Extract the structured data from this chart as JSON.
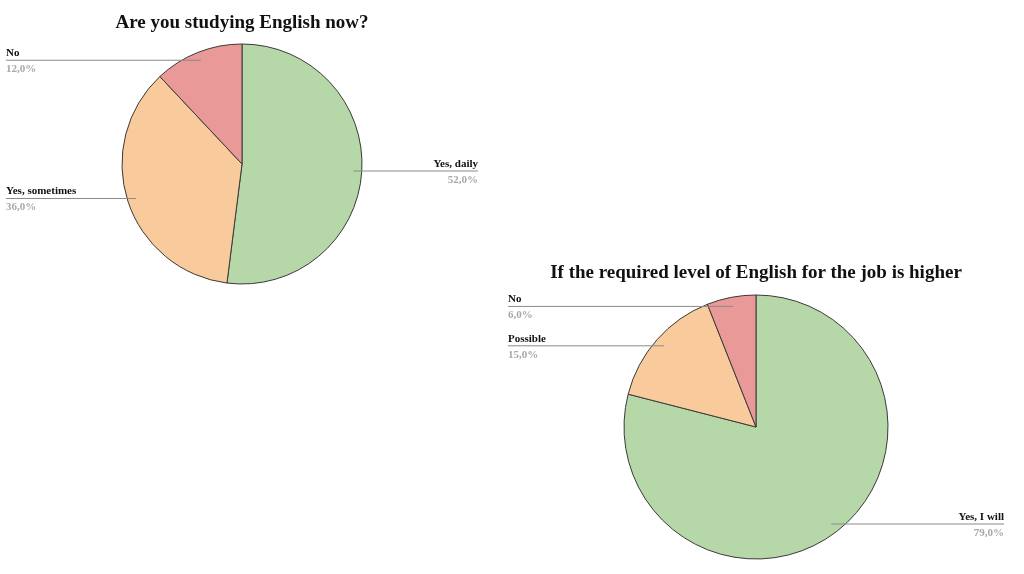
{
  "chart_data": [
    {
      "type": "pie",
      "title": "Are you studying English now?",
      "categories": [
        "Yes, daily",
        "Yes, sometimes",
        "No"
      ],
      "values": [
        52,
        36,
        12
      ],
      "colors": [
        "#b6d7a8",
        "#f9cb9c",
        "#ea9999"
      ],
      "value_labels": [
        "52,0%",
        "36,0%",
        "12,0%"
      ]
    },
    {
      "type": "pie",
      "title": "If the required level of English for the job is higher",
      "categories": [
        "Yes, I will",
        "Possible",
        "No"
      ],
      "values": [
        79,
        15,
        6
      ],
      "colors": [
        "#b6d7a8",
        "#f9cb9c",
        "#ea9999"
      ],
      "value_labels": [
        "79,0%",
        "15,0%",
        "6,0%"
      ]
    }
  ]
}
